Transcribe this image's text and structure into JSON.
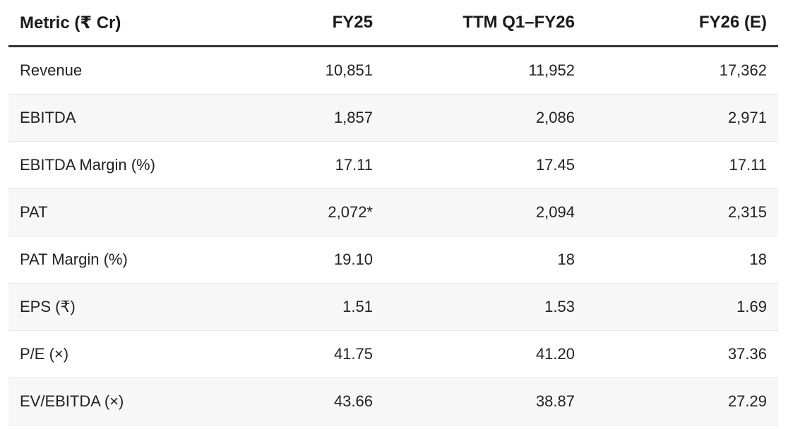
{
  "table": {
    "header": [
      "Metric (₹ Cr)",
      "FY25",
      "TTM Q1–FY26",
      "FY26 (E)"
    ],
    "rows": [
      [
        "Revenue",
        "10,851",
        "11,952",
        "17,362"
      ],
      [
        "EBITDA",
        "1,857",
        "2,086",
        "2,971"
      ],
      [
        "EBITDA Margin (%)",
        "17.11",
        "17.45",
        "17.11"
      ],
      [
        "PAT",
        "2,072*",
        "2,094",
        "2,315"
      ],
      [
        "PAT Margin (%)",
        "19.10",
        "18",
        "18"
      ],
      [
        "EPS (₹)",
        "1.51",
        "1.53",
        "1.69"
      ],
      [
        "P/E (×)",
        "41.75",
        "41.20",
        "37.36"
      ],
      [
        "EV/EBITDA (×)",
        "43.66",
        "38.87",
        "27.29"
      ]
    ]
  }
}
